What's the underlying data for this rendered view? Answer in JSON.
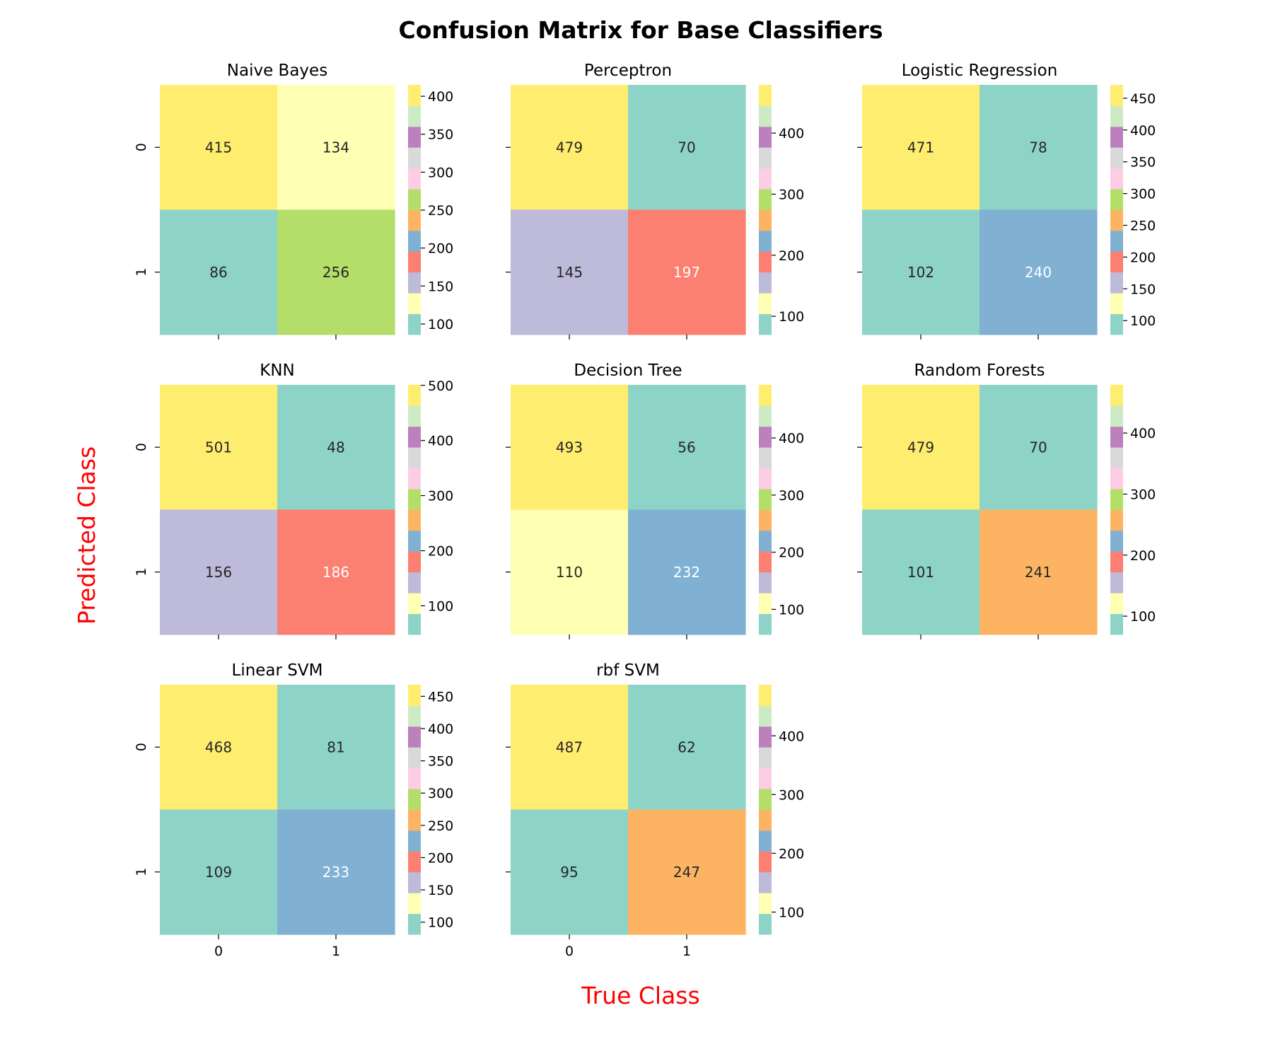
{
  "figure": {
    "title": "Confusion Matrix for Base Classifiers",
    "xlabel": "True Class",
    "ylabel": "Predicted Class",
    "label_color": "#ff0000"
  },
  "palette": {
    "name": "Set3",
    "colors_low_to_high": [
      "#8dd3c7",
      "#ffffb3",
      "#bebada",
      "#fb8072",
      "#80b1d3",
      "#fdb462",
      "#b3de69",
      "#fccde5",
      "#d9d9d9",
      "#bc80bd",
      "#ccebc5",
      "#ffed6f"
    ],
    "annotation_colors": [
      "#262626",
      "#ffffff"
    ]
  },
  "chart_data": [
    {
      "type": "heatmap",
      "title": "Naive Bayes",
      "categories": [
        "0",
        "1"
      ],
      "matrix": [
        [
          415,
          134
        ],
        [
          86,
          256
        ]
      ],
      "annotation_white": [
        [
          false,
          false
        ],
        [
          false,
          false
        ]
      ],
      "colorbar": {
        "range": [
          86,
          415
        ],
        "ticks": [
          100,
          150,
          200,
          250,
          300,
          350,
          400
        ]
      }
    },
    {
      "type": "heatmap",
      "title": "Perceptron",
      "categories": [
        "0",
        "1"
      ],
      "matrix": [
        [
          479,
          70
        ],
        [
          145,
          197
        ]
      ],
      "annotation_white": [
        [
          false,
          false
        ],
        [
          false,
          true
        ]
      ],
      "colorbar": {
        "range": [
          70,
          479
        ],
        "ticks": [
          100,
          200,
          300,
          400
        ]
      }
    },
    {
      "type": "heatmap",
      "title": "Logistic Regression",
      "categories": [
        "0",
        "1"
      ],
      "matrix": [
        [
          471,
          78
        ],
        [
          102,
          240
        ]
      ],
      "annotation_white": [
        [
          false,
          false
        ],
        [
          false,
          true
        ]
      ],
      "colorbar": {
        "range": [
          78,
          471
        ],
        "ticks": [
          100,
          150,
          200,
          250,
          300,
          350,
          400,
          450
        ]
      }
    },
    {
      "type": "heatmap",
      "title": "KNN",
      "categories": [
        "0",
        "1"
      ],
      "matrix": [
        [
          501,
          48
        ],
        [
          156,
          186
        ]
      ],
      "annotation_white": [
        [
          false,
          false
        ],
        [
          false,
          true
        ]
      ],
      "colorbar": {
        "range": [
          48,
          501
        ],
        "ticks": [
          100,
          200,
          300,
          400,
          500
        ]
      }
    },
    {
      "type": "heatmap",
      "title": "Decision Tree",
      "categories": [
        "0",
        "1"
      ],
      "matrix": [
        [
          493,
          56
        ],
        [
          110,
          232
        ]
      ],
      "annotation_white": [
        [
          false,
          false
        ],
        [
          false,
          true
        ]
      ],
      "colorbar": {
        "range": [
          56,
          493
        ],
        "ticks": [
          100,
          200,
          300,
          400
        ]
      }
    },
    {
      "type": "heatmap",
      "title": "Random Forests",
      "categories": [
        "0",
        "1"
      ],
      "matrix": [
        [
          479,
          70
        ],
        [
          101,
          241
        ]
      ],
      "annotation_white": [
        [
          false,
          false
        ],
        [
          false,
          false
        ]
      ],
      "colorbar": {
        "range": [
          70,
          479
        ],
        "ticks": [
          100,
          200,
          300,
          400
        ]
      }
    },
    {
      "type": "heatmap",
      "title": "Linear SVM",
      "categories": [
        "0",
        "1"
      ],
      "matrix": [
        [
          468,
          81
        ],
        [
          109,
          233
        ]
      ],
      "annotation_white": [
        [
          false,
          false
        ],
        [
          false,
          true
        ]
      ],
      "colorbar": {
        "range": [
          81,
          468
        ],
        "ticks": [
          100,
          150,
          200,
          250,
          300,
          350,
          400,
          450
        ]
      }
    },
    {
      "type": "heatmap",
      "title": "rbf SVM",
      "categories": [
        "0",
        "1"
      ],
      "matrix": [
        [
          487,
          62
        ],
        [
          95,
          247
        ]
      ],
      "annotation_white": [
        [
          false,
          false
        ],
        [
          false,
          false
        ]
      ],
      "colorbar": {
        "range": [
          62,
          487
        ],
        "ticks": [
          100,
          200,
          300,
          400
        ]
      }
    }
  ]
}
